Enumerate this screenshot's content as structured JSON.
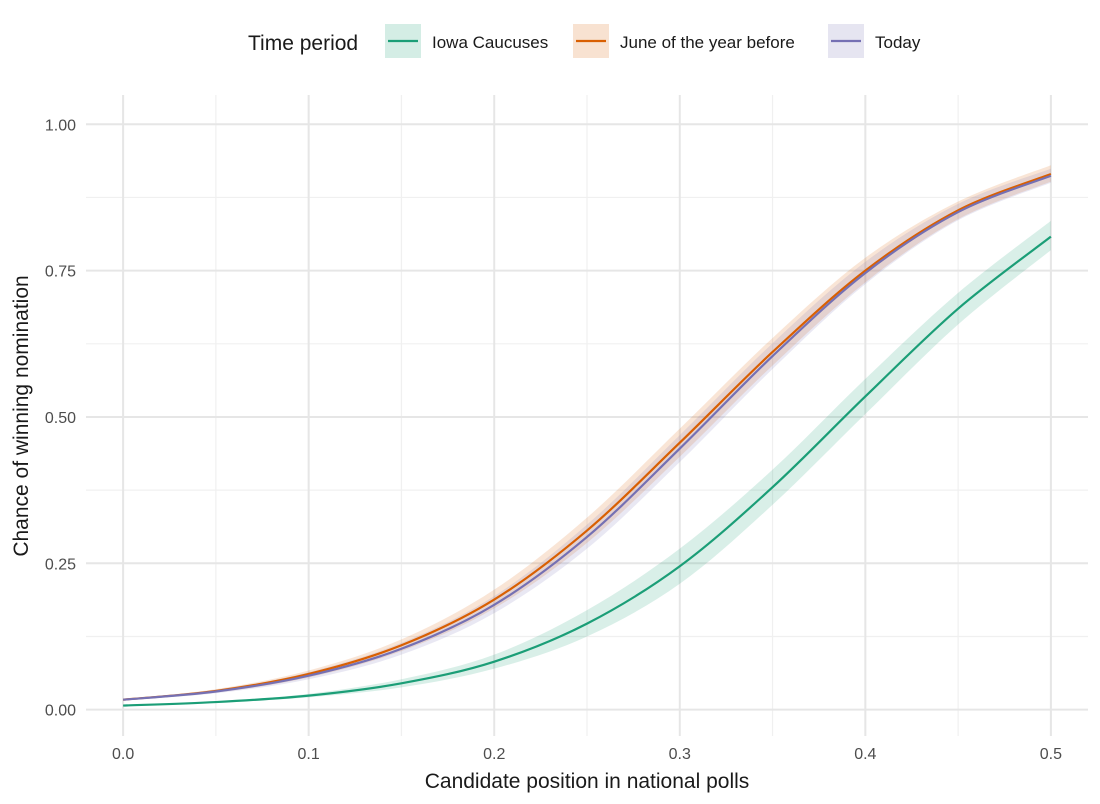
{
  "chart_data": {
    "type": "line",
    "title": "",
    "xlabel": "Candidate position in national polls",
    "ylabel": "Chance of winning nomination",
    "xlim": [
      -0.02,
      0.52
    ],
    "ylim": [
      -0.045,
      1.05
    ],
    "x_ticks": [
      0.0,
      0.1,
      0.2,
      0.3,
      0.4,
      0.5
    ],
    "x_tick_labels": [
      "0.0",
      "0.1",
      "0.2",
      "0.3",
      "0.4",
      "0.5"
    ],
    "y_ticks": [
      0.0,
      0.25,
      0.5,
      0.75,
      1.0
    ],
    "y_tick_labels": [
      "0.00",
      "0.25",
      "0.50",
      "0.75",
      "1.00"
    ],
    "grid": true,
    "legend": {
      "title": "Time period",
      "placement": "top",
      "entries": [
        "Iowa Caucuses",
        "June of the year before",
        "Today"
      ]
    },
    "x": [
      0.0,
      0.05,
      0.1,
      0.15,
      0.2,
      0.25,
      0.3,
      0.35,
      0.4,
      0.45,
      0.5
    ],
    "series": [
      {
        "name": "Iowa Caucuses",
        "color": "#1b9e77",
        "band_opacity": 0.17,
        "values": [
          0.007,
          0.013,
          0.024,
          0.045,
          0.082,
          0.147,
          0.245,
          0.38,
          0.535,
          0.685,
          0.808
        ],
        "band": {
          "lower": [
            0.0065,
            0.012,
            0.021,
            0.038,
            0.07,
            0.125,
            0.215,
            0.35,
            0.505,
            0.658,
            0.785
          ],
          "upper": [
            0.0075,
            0.014,
            0.027,
            0.052,
            0.094,
            0.17,
            0.275,
            0.41,
            0.565,
            0.712,
            0.835
          ]
        }
      },
      {
        "name": "June of the year before",
        "color": "#d95f02",
        "band_opacity": 0.16,
        "values": [
          0.017,
          0.032,
          0.061,
          0.11,
          0.188,
          0.306,
          0.456,
          0.611,
          0.75,
          0.853,
          0.915
        ],
        "band": {
          "lower": [
            0.016,
            0.029,
            0.055,
            0.1,
            0.173,
            0.285,
            0.432,
            0.588,
            0.73,
            0.838,
            0.902
          ],
          "upper": [
            0.018,
            0.035,
            0.067,
            0.12,
            0.205,
            0.328,
            0.48,
            0.635,
            0.772,
            0.868,
            0.93
          ]
        }
      },
      {
        "name": "Today",
        "color": "#7570b3",
        "band_opacity": 0.16,
        "values": [
          0.017,
          0.031,
          0.058,
          0.104,
          0.179,
          0.295,
          0.446,
          0.604,
          0.746,
          0.85,
          0.912
        ],
        "band": {
          "lower": [
            0.016,
            0.028,
            0.052,
            0.094,
            0.165,
            0.275,
            0.423,
            0.582,
            0.727,
            0.836,
            0.9
          ],
          "upper": [
            0.018,
            0.034,
            0.064,
            0.114,
            0.194,
            0.316,
            0.469,
            0.626,
            0.765,
            0.864,
            0.924
          ]
        }
      }
    ]
  }
}
